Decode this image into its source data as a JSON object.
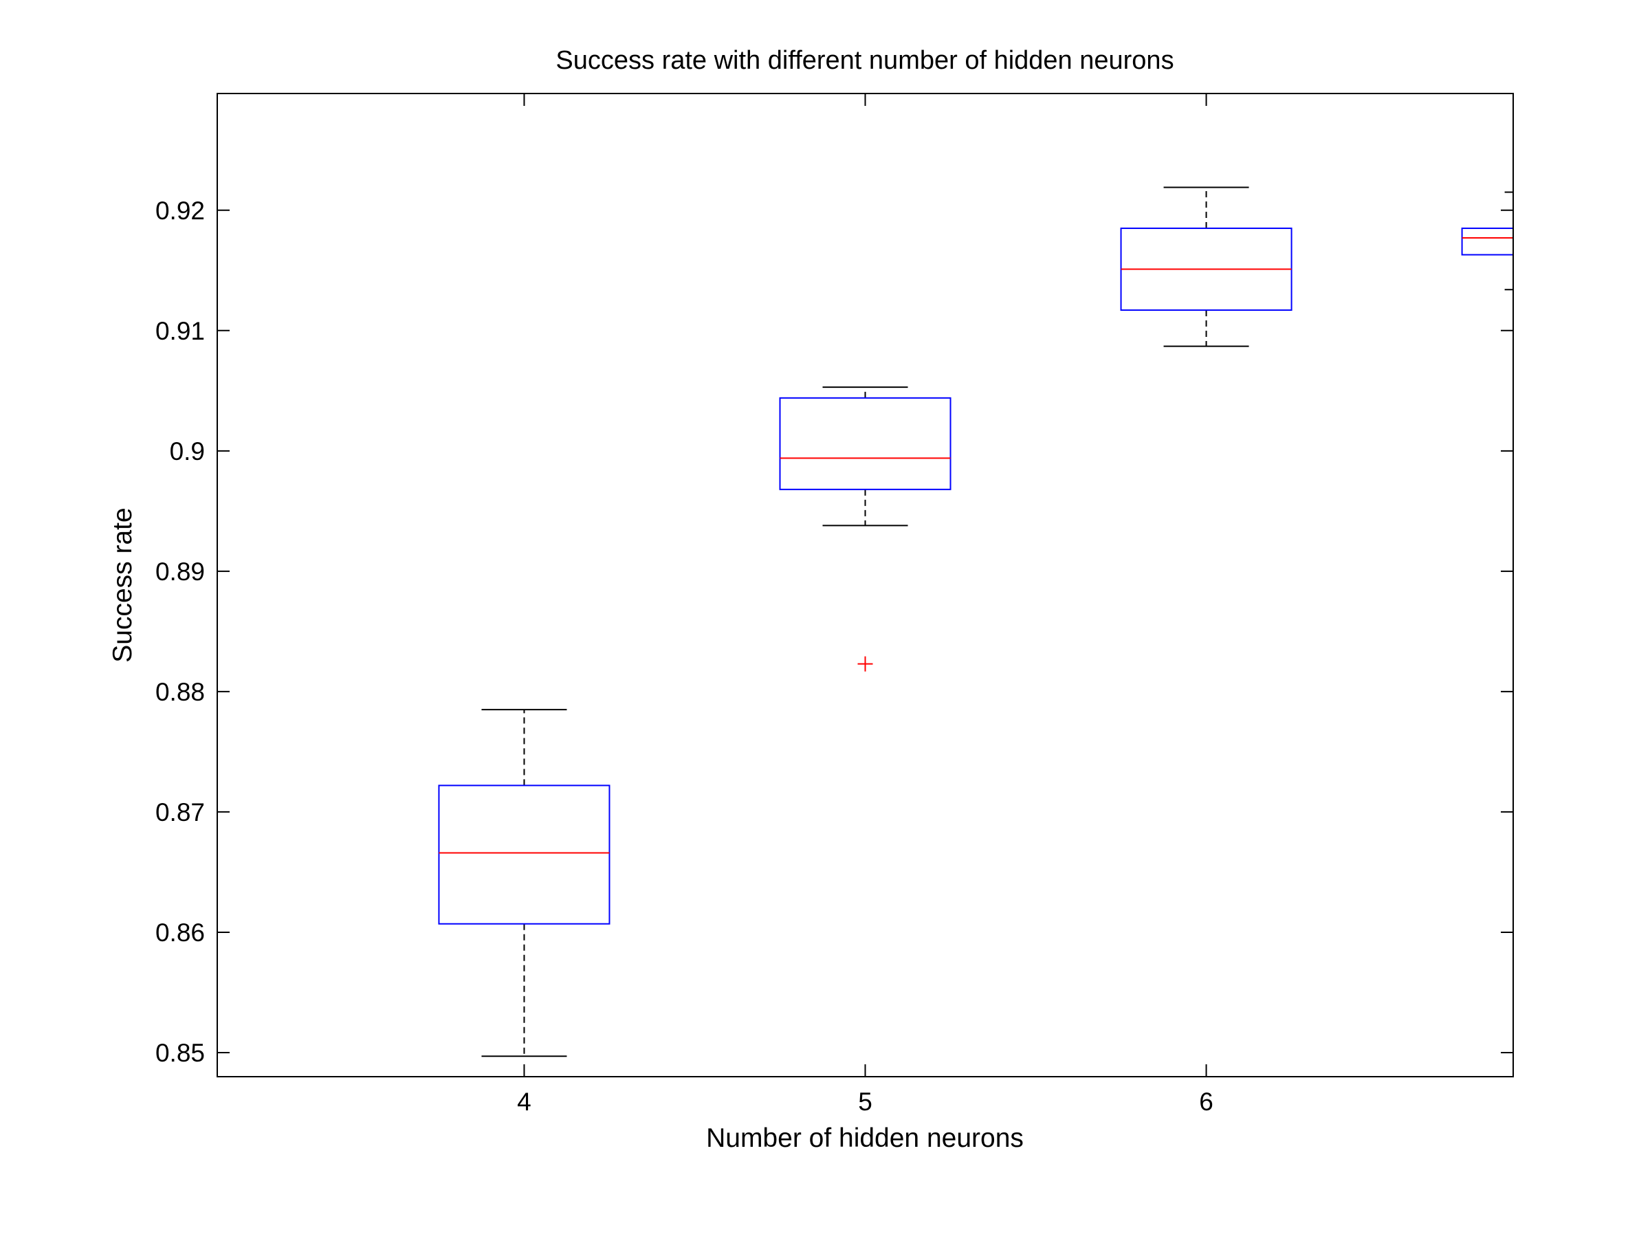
{
  "chart_data": {
    "type": "box",
    "title": "Success rate with different number of hidden neurons",
    "xlabel": "Number of hidden neurons",
    "ylabel": "Success rate",
    "ylim": [
      0.848,
      0.9297
    ],
    "xlim": [
      3.1,
      6.9
    ],
    "yticks": [
      0.85,
      0.86,
      0.87,
      0.88,
      0.89,
      0.9,
      0.91,
      0.92
    ],
    "yticklabels": [
      "0.85",
      "0.86",
      "0.87",
      "0.88",
      "0.89",
      "0.9",
      "0.91",
      "0.92"
    ],
    "xticks": [
      4,
      5,
      6
    ],
    "xticklabels": [
      "4",
      "5",
      "6"
    ],
    "grid": false,
    "colors": {
      "box": "#0000ff",
      "median": "#ff0000",
      "whisker": "#000000",
      "outlier": "#ff0000",
      "axes": "#000000"
    },
    "boxes": [
      {
        "x": 4,
        "whisker_low": 0.8497,
        "q1": 0.8607,
        "median": 0.8666,
        "q3": 0.8722,
        "whisker_high": 0.8785,
        "outliers": []
      },
      {
        "x": 5,
        "whisker_low": 0.8938,
        "q1": 0.8968,
        "median": 0.8994,
        "q3": 0.9044,
        "whisker_high": 0.9053,
        "outliers": [
          0.8823
        ]
      },
      {
        "x": 6,
        "whisker_low": 0.9087,
        "q1": 0.9117,
        "median": 0.9151,
        "q3": 0.9185,
        "whisker_high": 0.9219,
        "outliers": []
      },
      {
        "x": 7,
        "whisker_low": 0.9134,
        "q1": 0.9163,
        "median": 0.9177,
        "q3": 0.9185,
        "whisker_high": 0.9215,
        "outliers": []
      }
    ]
  }
}
